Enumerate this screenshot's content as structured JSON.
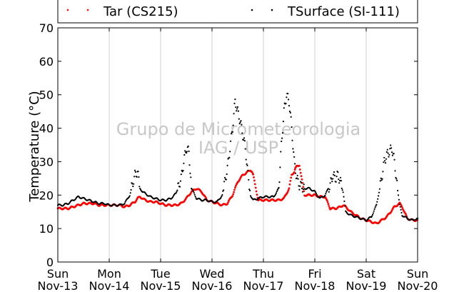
{
  "chart_data": {
    "type": "scatter",
    "ylabel": "Temperature (°C)",
    "xlabel": "",
    "ylim": [
      0,
      70
    ],
    "xlim": [
      0,
      7
    ],
    "yticks": [
      0,
      10,
      20,
      30,
      40,
      50,
      60,
      70
    ],
    "grid": "vertical",
    "legend_position": "top",
    "watermark": [
      "Grupo de Micrometeorologia",
      "IAG / USP"
    ],
    "xtick_labels": [
      {
        "day": "Sun",
        "date": "Nov-13"
      },
      {
        "day": "Mon",
        "date": "Nov-14"
      },
      {
        "day": "Tue",
        "date": "Nov-15"
      },
      {
        "day": "Wed",
        "date": "Nov-16"
      },
      {
        "day": "Thu",
        "date": "Nov-17"
      },
      {
        "day": "Fri",
        "date": "Nov-18"
      },
      {
        "day": "Sat",
        "date": "Nov-19"
      },
      {
        "day": "Sun",
        "date": "Nov-20"
      }
    ],
    "series": [
      {
        "name": "Tar (CS215)",
        "color": "#ff0000",
        "x": [
          0.0,
          0.1,
          0.2,
          0.3,
          0.4,
          0.5,
          0.6,
          0.7,
          0.8,
          0.9,
          1.0,
          1.1,
          1.2,
          1.3,
          1.4,
          1.5,
          1.55,
          1.6,
          1.65,
          1.7,
          1.8,
          1.9,
          2.0,
          2.1,
          2.2,
          2.3,
          2.4,
          2.5,
          2.55,
          2.6,
          2.65,
          2.7,
          2.8,
          2.9,
          3.0,
          3.1,
          3.2,
          3.3,
          3.4,
          3.5,
          3.6,
          3.7,
          3.75,
          3.78,
          3.8,
          3.9,
          4.0,
          4.1,
          4.2,
          4.3,
          4.4,
          4.5,
          4.55,
          4.6,
          4.62,
          4.65,
          4.7,
          4.8,
          4.9,
          5.0,
          5.1,
          5.2,
          5.3,
          5.4,
          5.5,
          5.55,
          5.6,
          5.7,
          5.8,
          5.9,
          6.0,
          6.1,
          6.2,
          6.3,
          6.4,
          6.5,
          6.55,
          6.6,
          6.65,
          6.7,
          6.8,
          6.9,
          7.0
        ],
        "y": [
          16,
          16,
          16,
          16.5,
          17,
          17.5,
          17.5,
          17.5,
          17,
          17,
          17,
          17,
          17,
          16.5,
          17,
          18,
          19,
          19.5,
          19,
          18.5,
          18,
          18,
          17.5,
          17,
          17,
          17,
          17.5,
          19,
          20,
          21,
          21.5,
          22,
          21,
          18.5,
          18,
          17.5,
          17,
          17.5,
          20,
          24,
          26,
          27,
          27.5,
          27,
          26,
          18.5,
          18.5,
          18.5,
          18.5,
          18.5,
          19,
          22,
          26,
          27,
          28,
          28.5,
          29,
          20,
          20,
          20,
          19.5,
          19.5,
          16,
          16,
          16.5,
          17,
          16.5,
          15,
          14,
          13,
          12.5,
          12,
          11.5,
          12.5,
          13.5,
          15.5,
          16.5,
          17,
          17.5,
          16.5,
          13,
          12.5,
          12.5
        ]
      },
      {
        "name": "TSurface (SI-111)",
        "color": "#000000",
        "x": [
          0.0,
          0.1,
          0.2,
          0.3,
          0.4,
          0.5,
          0.6,
          0.7,
          0.8,
          0.9,
          1.0,
          1.1,
          1.2,
          1.3,
          1.4,
          1.45,
          1.5,
          1.55,
          1.6,
          1.65,
          1.7,
          1.8,
          1.9,
          2.0,
          2.1,
          2.2,
          2.3,
          2.4,
          2.45,
          2.5,
          2.55,
          2.6,
          2.7,
          2.8,
          2.9,
          3.0,
          3.1,
          3.2,
          3.3,
          3.4,
          3.45,
          3.5,
          3.55,
          3.6,
          3.65,
          3.7,
          3.75,
          3.8,
          3.9,
          4.0,
          4.1,
          4.2,
          4.3,
          4.35,
          4.4,
          4.45,
          4.5,
          4.55,
          4.6,
          4.65,
          4.7,
          4.8,
          4.9,
          5.0,
          5.1,
          5.2,
          5.3,
          5.35,
          5.4,
          5.45,
          5.5,
          5.55,
          5.6,
          5.7,
          5.8,
          5.9,
          6.0,
          6.1,
          6.2,
          6.3,
          6.35,
          6.4,
          6.45,
          6.5,
          6.55,
          6.6,
          6.65,
          6.7,
          6.8,
          6.9,
          7.0
        ],
        "y": [
          17,
          17,
          17.5,
          18.5,
          19.5,
          19,
          18.5,
          18,
          17.5,
          17.5,
          17,
          17,
          17,
          17.5,
          20,
          23,
          26,
          27,
          22,
          21,
          20.5,
          19.5,
          19,
          18.5,
          18.5,
          19,
          20.5,
          25,
          30,
          34,
          33,
          22,
          19,
          18.5,
          18.5,
          18,
          18,
          20,
          28,
          40,
          48,
          45,
          42,
          38,
          34,
          26,
          20,
          18.5,
          19,
          19.5,
          19.5,
          19.5,
          22,
          35,
          45,
          50,
          48,
          40,
          30,
          25,
          23,
          22,
          22,
          21,
          19,
          20,
          23,
          26,
          25,
          26,
          24,
          21,
          15,
          14,
          13.5,
          13,
          12.5,
          13.5,
          17,
          25,
          30,
          32,
          33,
          34,
          30,
          23,
          17,
          14,
          13,
          12.5,
          13
        ]
      }
    ]
  }
}
